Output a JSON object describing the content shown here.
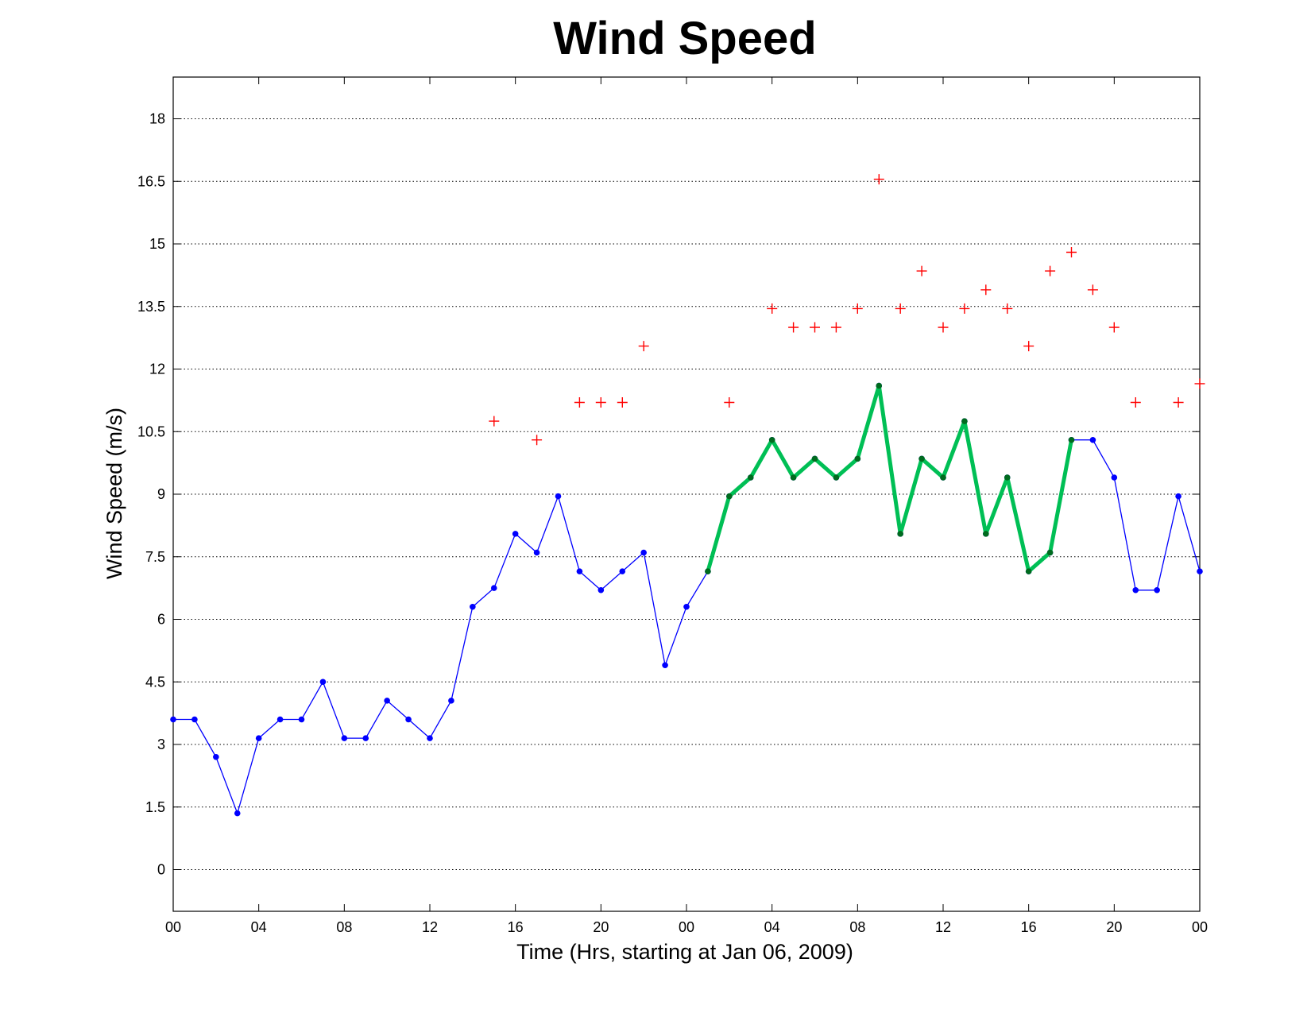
{
  "chart_data": {
    "type": "line",
    "title": "Wind Speed",
    "xlabel": "Time (Hrs, starting at Jan 06, 2009)",
    "ylabel": "Wind Speed (m/s)",
    "xlim": [
      0,
      48
    ],
    "ylim": [
      -1,
      19
    ],
    "x_ticks": [
      0,
      4,
      8,
      12,
      16,
      20,
      24,
      28,
      32,
      36,
      40,
      44,
      48
    ],
    "x_tick_labels": [
      "00",
      "04",
      "08",
      "12",
      "16",
      "20",
      "00",
      "04",
      "08",
      "12",
      "16",
      "20",
      "00"
    ],
    "y_ticks": [
      0,
      1.5,
      3,
      4.5,
      6,
      7.5,
      9,
      10.5,
      12,
      13.5,
      15,
      16.5,
      18
    ],
    "y_tick_labels": [
      "0",
      "1.5",
      "3",
      "4.5",
      "6",
      "7.5",
      "9",
      "10.5",
      "12",
      "13.5",
      "15",
      "16.5",
      "18"
    ],
    "grid": "y-dotted",
    "series": [
      {
        "style": "blue-line-dots",
        "color": "#0000ff",
        "x": [
          0,
          1,
          2,
          3,
          4,
          5,
          6,
          7,
          8,
          9,
          10,
          11,
          12,
          13,
          14,
          15,
          16,
          17,
          18,
          19,
          20,
          21,
          22,
          23,
          24,
          25,
          26,
          27,
          28,
          29,
          30,
          31,
          32,
          33,
          34,
          35,
          36,
          37,
          38,
          39,
          40,
          41,
          42,
          43,
          44,
          45,
          46,
          47,
          48
        ],
        "y": [
          3.6,
          3.6,
          2.7,
          1.35,
          3.15,
          3.6,
          3.6,
          4.5,
          3.15,
          3.15,
          4.05,
          3.6,
          3.15,
          4.05,
          6.3,
          6.75,
          8.05,
          7.6,
          8.95,
          7.15,
          6.7,
          7.15,
          7.6,
          4.9,
          6.3,
          7.15,
          8.95,
          9.4,
          10.3,
          9.4,
          9.85,
          9.4,
          9.85,
          11.6,
          8.05,
          9.85,
          9.4,
          10.75,
          8.05,
          9.4,
          7.15,
          7.6,
          10.3,
          10.3,
          9.4,
          6.7,
          6.7,
          8.95,
          7.15
        ]
      },
      {
        "style": "green-thick-line-dots",
        "color": "#00bf55",
        "marker_color": "#006b1e",
        "x": [
          25,
          26,
          27,
          28,
          29,
          30,
          31,
          32,
          33,
          34,
          35,
          36,
          37,
          38,
          39,
          40,
          41,
          42
        ],
        "y": [
          7.15,
          8.95,
          9.4,
          10.3,
          9.4,
          9.85,
          9.4,
          9.85,
          11.6,
          8.05,
          9.85,
          9.4,
          10.75,
          8.05,
          9.4,
          7.15,
          7.6,
          10.3
        ]
      },
      {
        "style": "red-plus-markers",
        "color": "#ff0000",
        "x": [
          15,
          17,
          19,
          20,
          21,
          22,
          26,
          28,
          29,
          30,
          31,
          32,
          33,
          34,
          35,
          36,
          37,
          38,
          39,
          40,
          41,
          42,
          43,
          44,
          45,
          47,
          48
        ],
        "y": [
          10.75,
          10.3,
          11.2,
          11.2,
          11.2,
          12.55,
          11.2,
          13.45,
          13.0,
          13.0,
          13.0,
          13.45,
          16.55,
          13.45,
          14.35,
          13.0,
          13.45,
          13.9,
          13.45,
          12.55,
          14.35,
          14.8,
          13.9,
          13.0,
          11.2,
          11.2,
          11.65
        ]
      }
    ]
  }
}
